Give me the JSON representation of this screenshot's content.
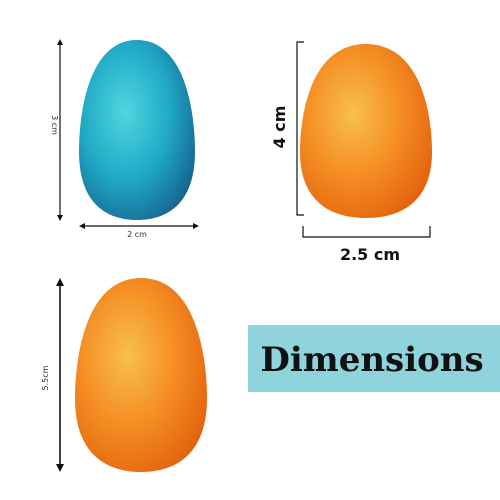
{
  "labels": {
    "blue_height": "3 cm",
    "blue_width": "2 cm",
    "orange_height": "4 cm",
    "orange_width": "2.5 cm",
    "large_height": "5.5cm"
  },
  "banner": "Dimensions"
}
